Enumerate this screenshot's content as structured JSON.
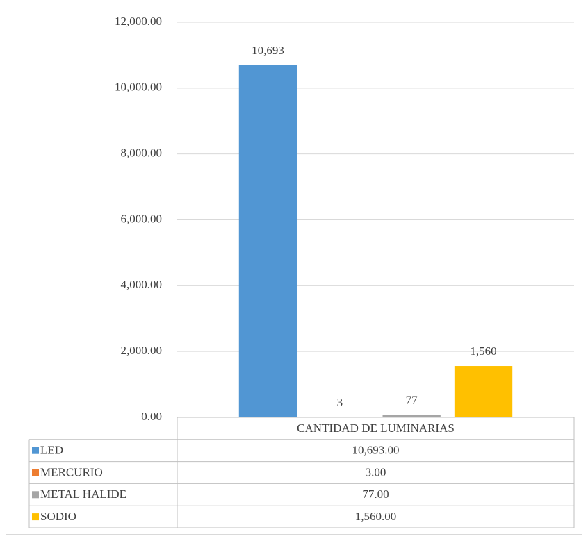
{
  "chart_data": {
    "type": "bar",
    "categories": [
      "CANTIDAD DE LUMINARIAS"
    ],
    "series": [
      {
        "name": "LED",
        "color": "#5196d3",
        "values": [
          10693
        ],
        "value_labels": [
          "10,693"
        ],
        "table_labels": [
          "10,693.00"
        ]
      },
      {
        "name": "MERCURIO",
        "color": "#ed7d31",
        "values": [
          3
        ],
        "value_labels": [
          "3"
        ],
        "table_labels": [
          "3.00"
        ]
      },
      {
        "name": "METAL HALIDE",
        "color": "#a5a5a5",
        "values": [
          77
        ],
        "value_labels": [
          "77"
        ],
        "table_labels": [
          "77.00"
        ]
      },
      {
        "name": "SODIO",
        "color": "#ffc000",
        "values": [
          1560
        ],
        "value_labels": [
          "1,560"
        ],
        "table_labels": [
          "1,560.00"
        ]
      }
    ],
    "ylim": [
      0,
      12000
    ],
    "yticks": [
      {
        "value": 0,
        "label": "0.00"
      },
      {
        "value": 2000,
        "label": "2,000.00"
      },
      {
        "value": 4000,
        "label": "4,000.00"
      },
      {
        "value": 6000,
        "label": "6,000.00"
      },
      {
        "value": 8000,
        "label": "8,000.00"
      },
      {
        "value": 10000,
        "label": "10,000.00"
      },
      {
        "value": 12000,
        "label": "12,000.00"
      }
    ],
    "grid": true
  }
}
